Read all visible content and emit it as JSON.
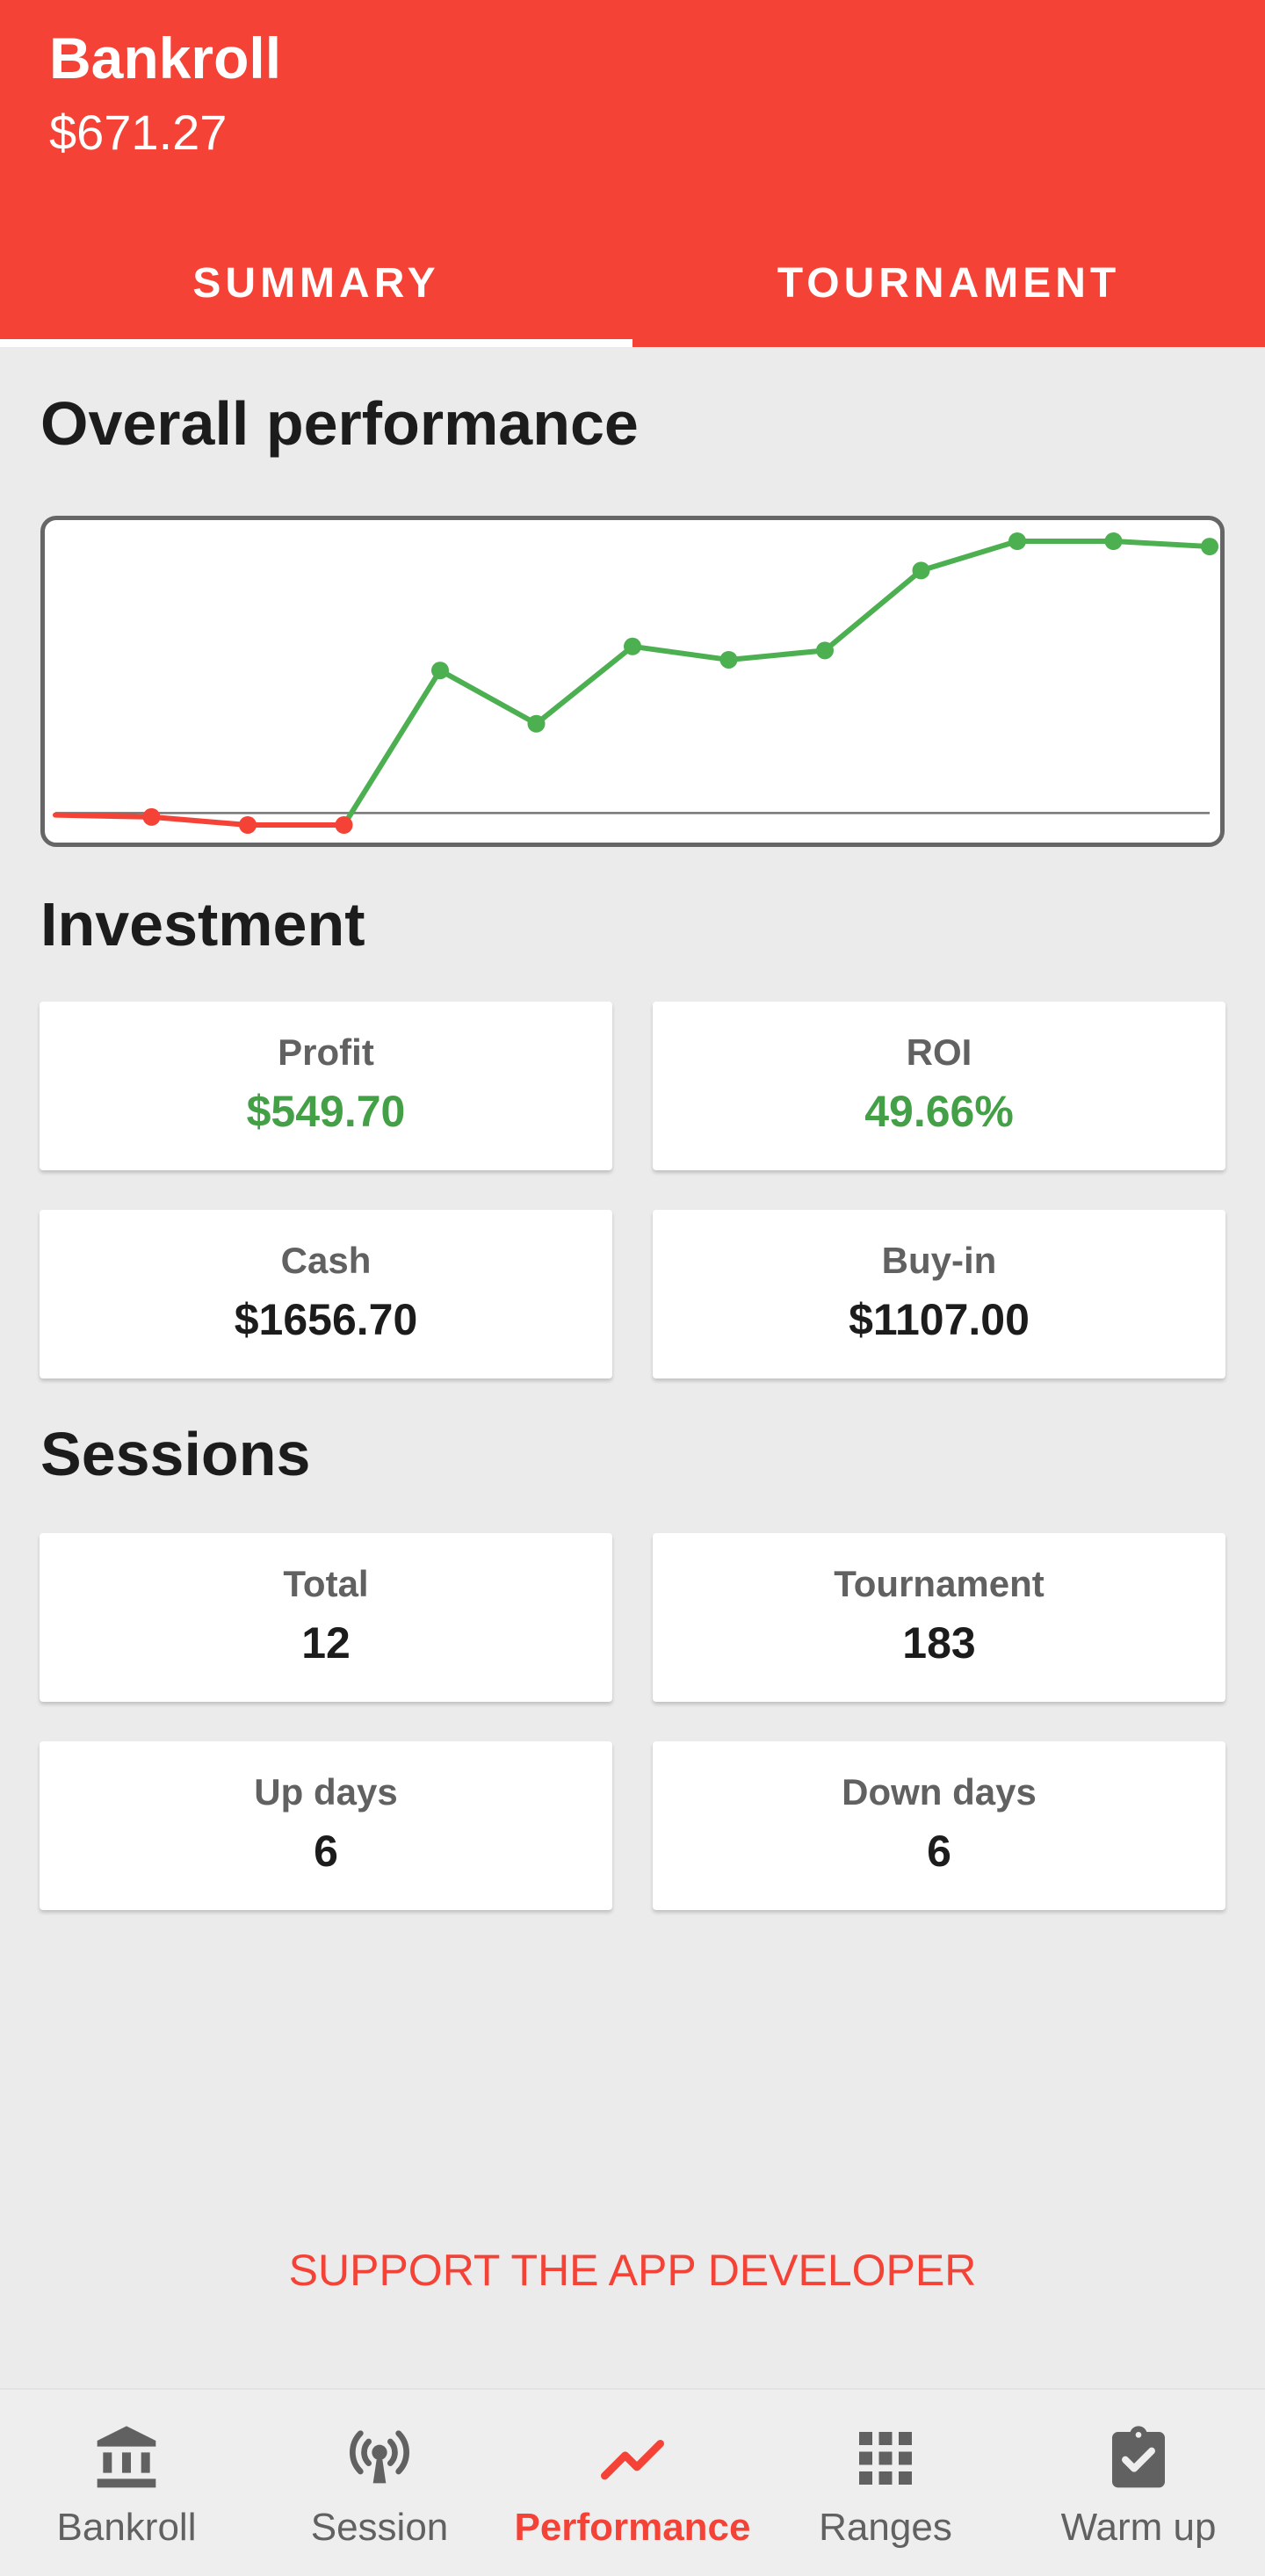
{
  "header": {
    "title": "Bankroll",
    "balance": "$671.27"
  },
  "tabs": [
    {
      "label": "SUMMARY"
    },
    {
      "label": "TOURNAMENT"
    }
  ],
  "active_tab": "SUMMARY",
  "overall": {
    "title": "Overall performance",
    "chart_data": {
      "type": "line",
      "x": [
        0,
        1,
        2,
        3,
        4,
        5,
        6,
        7,
        8,
        9,
        10,
        11,
        12
      ],
      "values": [
        -1.5,
        -3,
        -9,
        -9,
        107,
        67,
        125,
        115,
        122,
        182,
        204,
        204,
        200
      ],
      "baseline": 0,
      "colors": {
        "positive": "#4caf50",
        "negative": "#f44336",
        "baseline": "#757575"
      },
      "grid": false
    }
  },
  "investment": {
    "title": "Investment",
    "cards": [
      {
        "label": "Profit",
        "value": "$549.70",
        "positive": true
      },
      {
        "label": "ROI",
        "value": "49.66%",
        "positive": true
      },
      {
        "label": "Cash",
        "value": "$1656.70",
        "positive": false
      },
      {
        "label": "Buy-in",
        "value": "$1107.00",
        "positive": false
      }
    ]
  },
  "sessions": {
    "title": "Sessions",
    "cards": [
      {
        "label": "Total",
        "value": "12"
      },
      {
        "label": "Tournament",
        "value": "183"
      },
      {
        "label": "Up days",
        "value": "6"
      },
      {
        "label": "Down days",
        "value": "6"
      }
    ]
  },
  "support": {
    "label": "SUPPORT THE APP DEVELOPER"
  },
  "nav": [
    {
      "label": "Bankroll",
      "icon": "bank-icon"
    },
    {
      "label": "Session",
      "icon": "broadcast-icon"
    },
    {
      "label": "Performance",
      "icon": "trending-up-icon"
    },
    {
      "label": "Ranges",
      "icon": "grid-icon"
    },
    {
      "label": "Warm up",
      "icon": "clipboard-check-icon"
    }
  ],
  "active_nav": "Performance",
  "colors": {
    "accent": "#f44336",
    "positive": "#43a047"
  }
}
